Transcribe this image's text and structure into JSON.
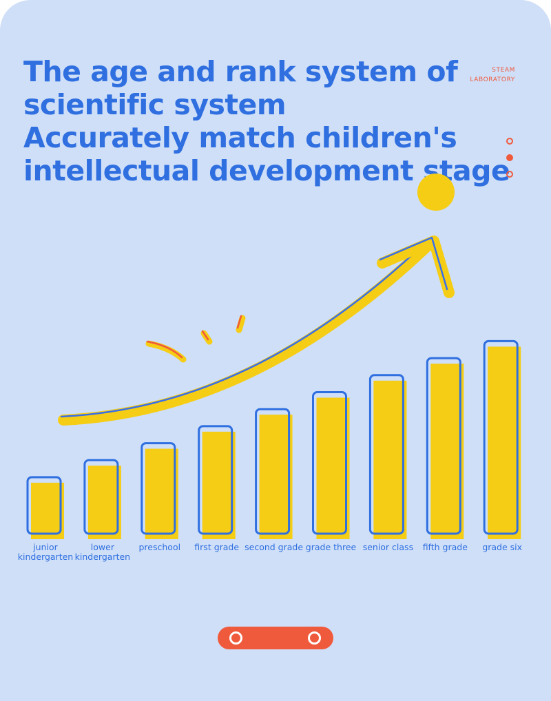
{
  "headline": {
    "line1": "The age and rank system of",
    "line2": "scientific system",
    "line3": "Accurately match children's",
    "line4": "intellectual development stage"
  },
  "brand": {
    "line1": "STEAM",
    "line2": "LABORATORY"
  },
  "colors": {
    "background": "#cfdff8",
    "accent_blue": "#2f6fe0",
    "accent_yellow": "#f5cd14",
    "accent_red": "#f05a3c"
  },
  "chart_data": {
    "type": "bar",
    "title": "",
    "xlabel": "",
    "ylabel": "",
    "categories": [
      "junior\nkindergarten",
      "lower\nkindergarten",
      "preschool",
      "first grade",
      "second grade",
      "grade three",
      "senior class",
      "fifth grade",
      "grade six"
    ],
    "values": [
      1,
      2,
      3,
      4,
      5,
      6,
      7,
      8,
      9
    ],
    "ylim": [
      0,
      10
    ],
    "grid": false,
    "legend": "none",
    "annotations": [
      "upward trend arrow"
    ]
  }
}
